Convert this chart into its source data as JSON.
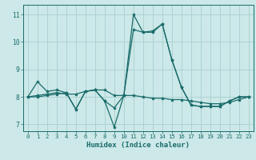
{
  "xlabel": "Humidex (Indice chaleur)",
  "bg_color": "#cce8e8",
  "grid_color": "#aacfcf",
  "line_color": "#1a6b6b",
  "xlim": [
    -0.5,
    23.5
  ],
  "ylim": [
    6.75,
    11.35
  ],
  "yticks": [
    7,
    8,
    9,
    10,
    11
  ],
  "xticks": [
    0,
    1,
    2,
    3,
    4,
    5,
    6,
    7,
    8,
    9,
    10,
    11,
    12,
    13,
    14,
    15,
    16,
    17,
    18,
    19,
    20,
    21,
    22,
    23
  ],
  "series": [
    [
      8.0,
      8.55,
      8.2,
      8.25,
      8.15,
      7.55,
      8.2,
      8.25,
      7.85,
      6.9,
      8.05,
      11.0,
      10.35,
      10.35,
      10.65,
      9.35,
      8.35,
      7.7,
      7.65,
      7.65,
      7.65,
      7.85,
      8.0,
      8.0
    ],
    [
      8.0,
      8.05,
      8.1,
      8.15,
      8.1,
      8.1,
      8.2,
      8.25,
      8.25,
      8.05,
      8.05,
      8.05,
      8.0,
      7.95,
      7.95,
      7.9,
      7.9,
      7.85,
      7.8,
      7.75,
      7.75,
      7.8,
      7.9,
      8.0
    ],
    [
      8.0,
      8.0,
      8.05,
      8.1,
      8.15,
      7.55,
      8.2,
      8.25,
      7.85,
      7.6,
      8.05,
      10.45,
      10.35,
      10.4,
      10.65,
      9.35,
      8.35,
      7.7,
      7.65,
      7.65,
      7.65,
      7.85,
      8.0,
      8.0
    ]
  ]
}
